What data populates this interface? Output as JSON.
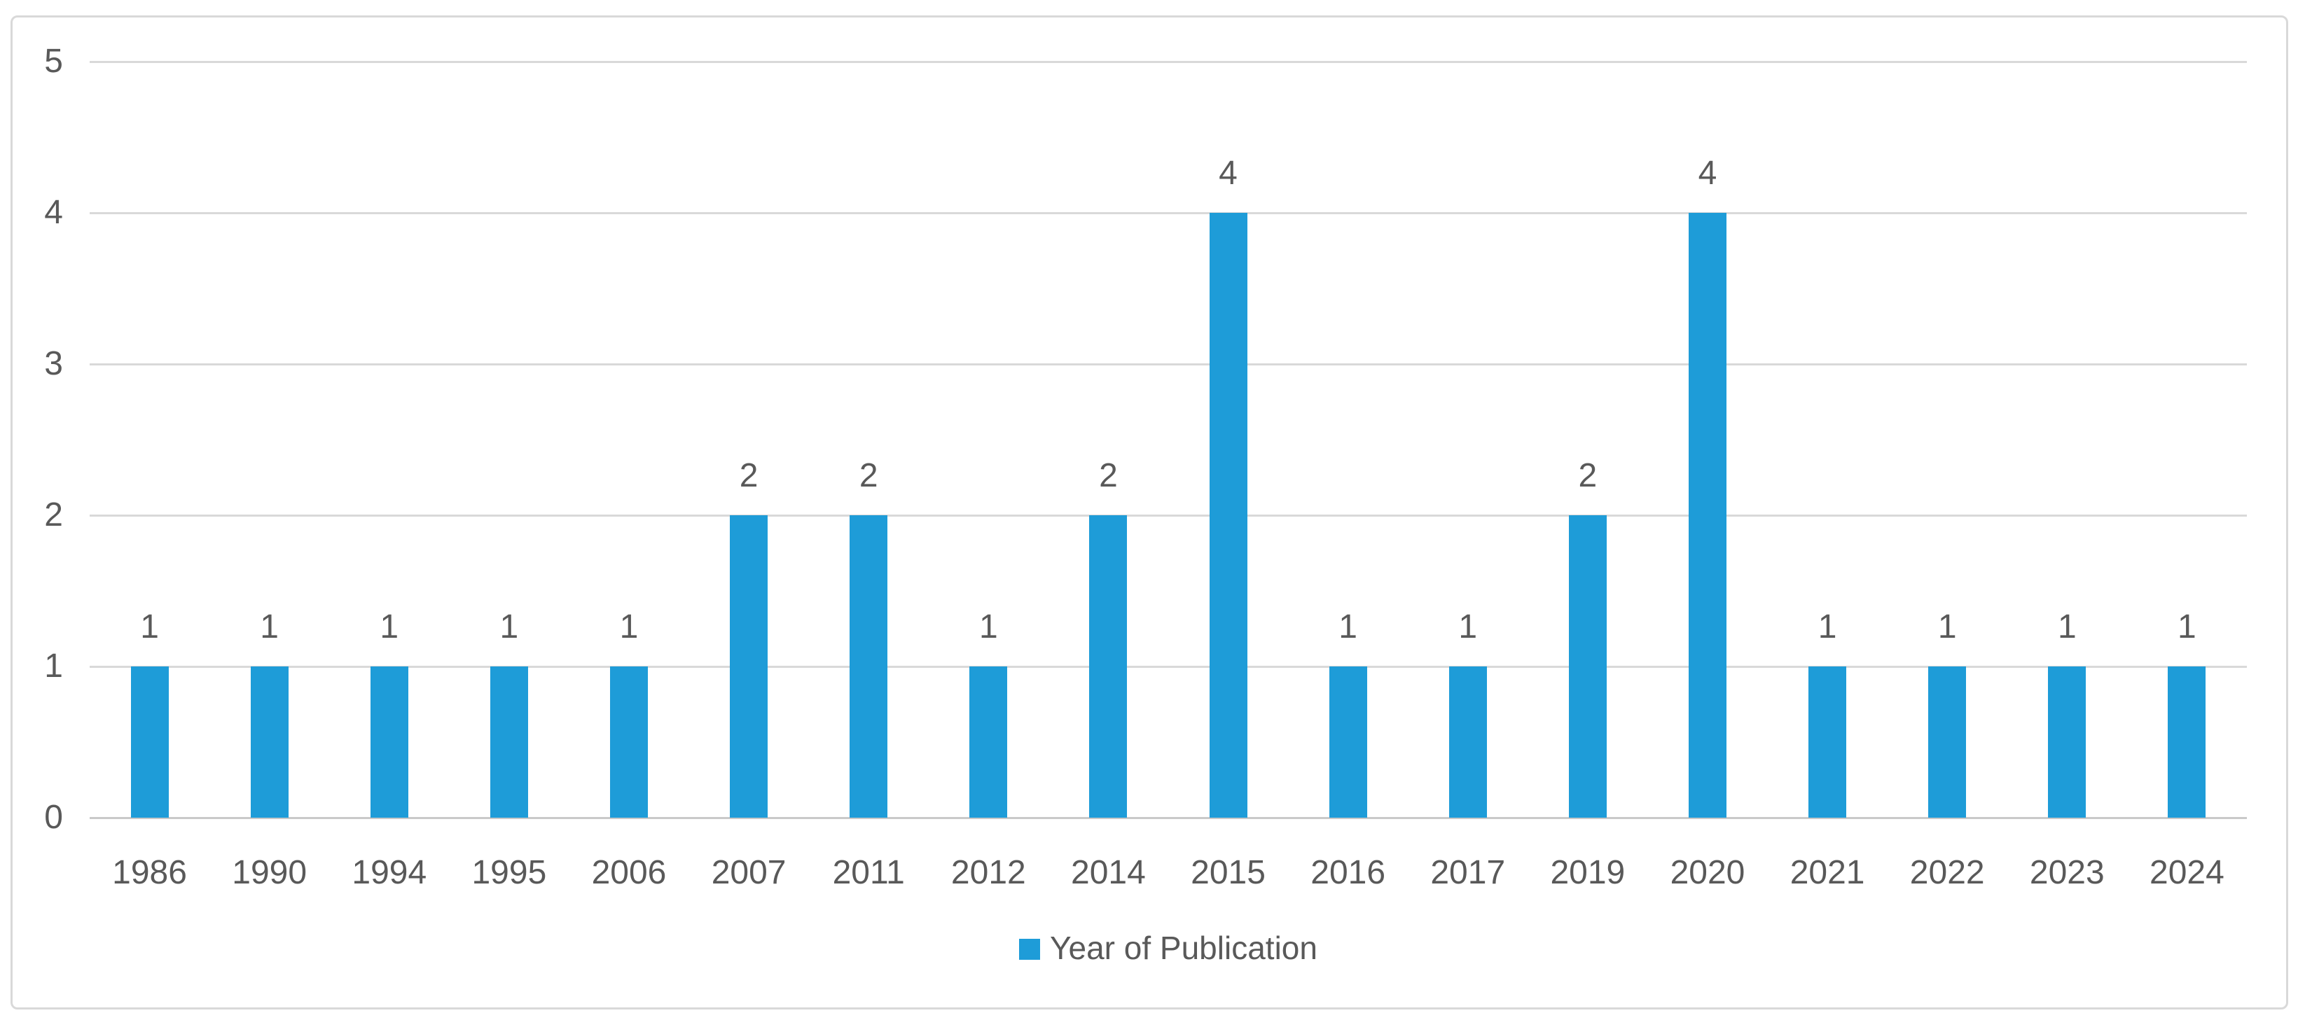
{
  "chart_data": {
    "type": "bar",
    "title": "",
    "categories": [
      "1986",
      "1990",
      "1994",
      "1995",
      "2006",
      "2007",
      "2011",
      "2012",
      "2014",
      "2015",
      "2016",
      "2017",
      "2019",
      "2020",
      "2021",
      "2022",
      "2023",
      "2024"
    ],
    "values": [
      1,
      1,
      1,
      1,
      1,
      2,
      2,
      1,
      2,
      4,
      1,
      1,
      2,
      4,
      1,
      1,
      1,
      1
    ],
    "series_name": "Year of Publication",
    "data_labels_shown": true,
    "xlabel": "",
    "ylabel": "",
    "y_ticks": [
      0,
      1,
      2,
      3,
      4,
      5
    ],
    "ylim": [
      0,
      5
    ],
    "grid": true,
    "legend_position": "bottom",
    "colors": {
      "bar": "#1E9CD8",
      "text": "#595959",
      "gridline": "#D9D9D9",
      "baseline": "#C9C9C9",
      "frame_border": "#D9D9D9"
    }
  },
  "legend": {
    "label": "Year of Publication"
  }
}
